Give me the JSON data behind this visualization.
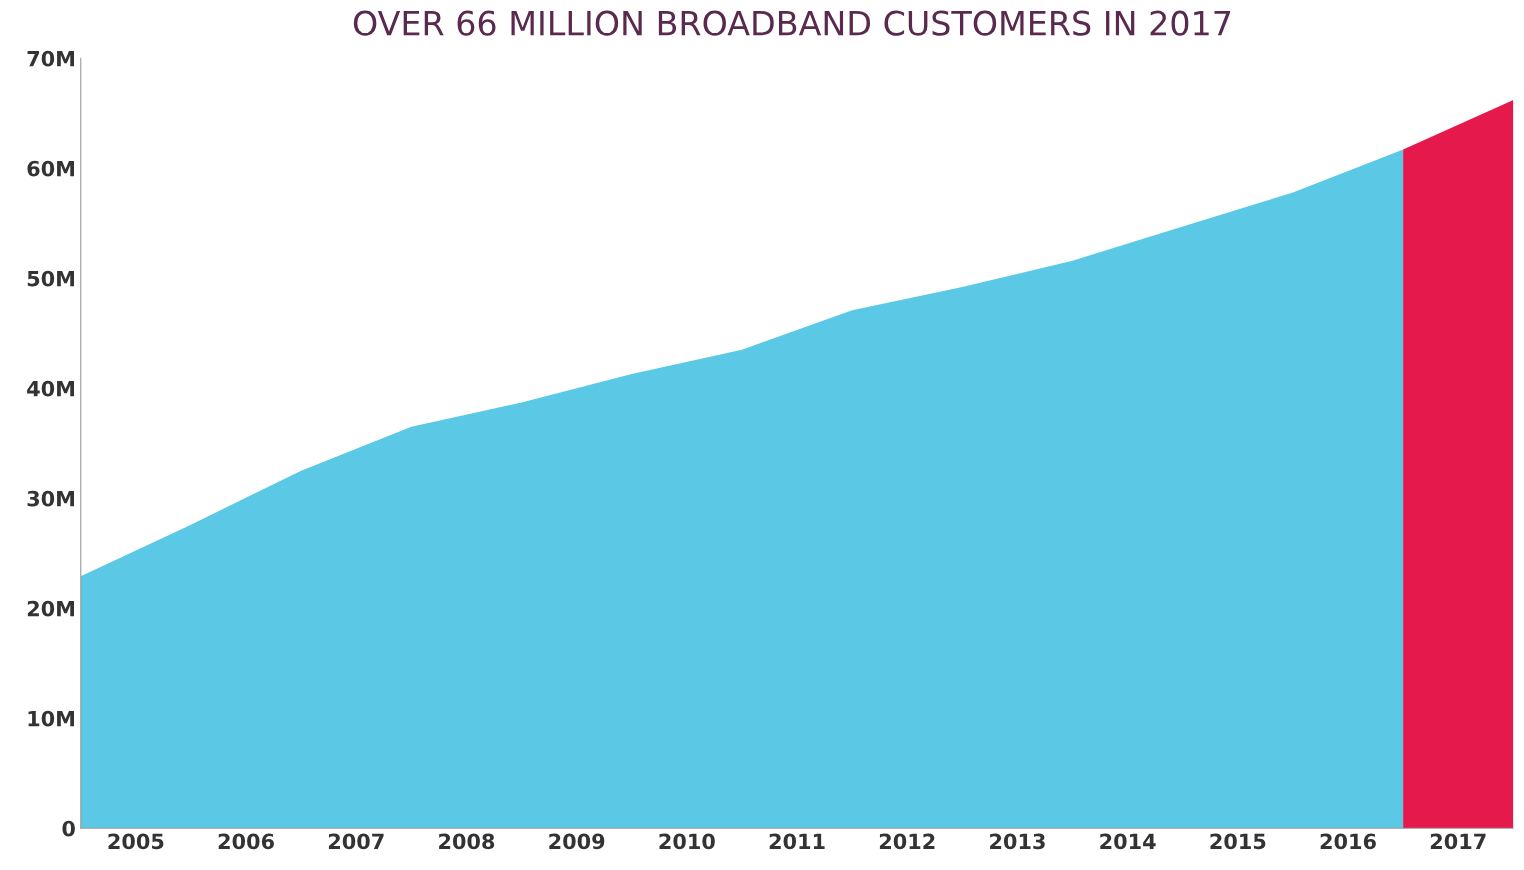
{
  "chart_data": {
    "type": "area",
    "title": "OVER 66 MILLION BROADBAND CUSTOMERS IN 2017",
    "series": [
      {
        "color": "#5bc8e6",
        "x": [
          2004.5,
          2005.5,
          2006.5,
          2007.5,
          2008.5,
          2009.5,
          2010.5,
          2011.5,
          2012.5,
          2013.5,
          2014.5,
          2015.5,
          2016.5
        ],
        "values": [
          22.9,
          27.6,
          32.5,
          36.5,
          38.7,
          41.3,
          43.5,
          47.1,
          49.2,
          51.6,
          54.7,
          57.8,
          61.7
        ]
      },
      {
        "color": "#e5194b",
        "x": [
          2016.5,
          2017.5
        ],
        "values": [
          61.7,
          66.2
        ]
      }
    ],
    "xlim": [
      2004.5,
      2017.5
    ],
    "xticks": [
      2005,
      2006,
      2007,
      2008,
      2009,
      2010,
      2011,
      2012,
      2013,
      2014,
      2015,
      2016,
      2017
    ],
    "ylim": [
      0,
      70
    ],
    "yticks": [
      0,
      {
        "value": 10,
        "label": "10M"
      },
      {
        "value": 20,
        "label": "20M"
      },
      {
        "value": 30,
        "label": "30M"
      },
      {
        "value": 40,
        "label": "40M"
      },
      {
        "value": 50,
        "label": "50M"
      },
      {
        "value": 60,
        "label": "60M"
      },
      {
        "value": 70,
        "label": "70M"
      }
    ],
    "grid": false,
    "legend": false
  }
}
